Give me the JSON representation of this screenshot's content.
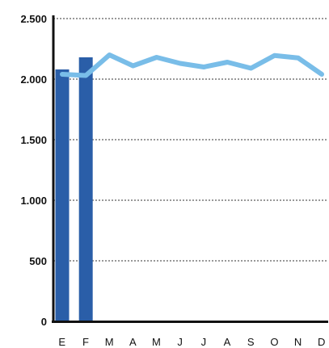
{
  "chart_data": {
    "type": "bar",
    "title": "",
    "xlabel": "",
    "ylabel": "",
    "categories": [
      "E",
      "F",
      "M",
      "A",
      "M",
      "J",
      "J",
      "A",
      "S",
      "O",
      "N",
      "D"
    ],
    "y_ticks": [
      0,
      500,
      1000,
      1500,
      2000,
      2500
    ],
    "y_tick_labels": [
      "0",
      "500",
      "1.000",
      "1.500",
      "2.000",
      "2.500"
    ],
    "ylim": [
      0,
      2500
    ],
    "grid": true,
    "series": [
      {
        "type": "bar",
        "color": "#2a5ea8",
        "values": [
          2080,
          2180,
          null,
          null,
          null,
          null,
          null,
          null,
          null,
          null,
          null,
          null
        ]
      },
      {
        "type": "line",
        "color": "#79bde8",
        "values": [
          2040,
          2030,
          2200,
          2110,
          2180,
          2130,
          2100,
          2140,
          2090,
          2195,
          2175,
          2040
        ]
      }
    ]
  }
}
